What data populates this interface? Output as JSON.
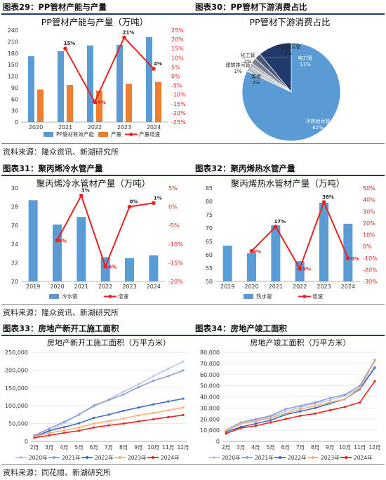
{
  "headers": {
    "h29": "图表29：PP管材产能与产量",
    "h30": "图表30：PP管材下游消费占比",
    "h31": "图表31：聚丙烯冷水管产量",
    "h32": "图表32：聚丙烯热水管产量",
    "h33": "图表33：房地产新开工施工面积",
    "h34": "图表34：房地产竣工面积"
  },
  "sources": {
    "s1": "资料来源：隆众资讯、新湖研究所",
    "s2": "资料来源：隆众资讯、新湖研究所",
    "s3": "资料来源：同花顺、新湖研究所"
  },
  "colors": {
    "blue": "#5b9bd5",
    "orange": "#ed7d31",
    "red": "#e8231f",
    "navy": "#1f3a6b"
  },
  "chart_data": [
    {
      "id": "c29",
      "type": "bar",
      "title": "PP管材产能与产量（万吨）",
      "categories": [
        "2020",
        "2021",
        "2022",
        "2023",
        "2024"
      ],
      "series": [
        {
          "name": "PP管材有效产能",
          "values": [
            172,
            185,
            200,
            202,
            222
          ]
        },
        {
          "name": "产量",
          "values": [
            85,
            97,
            82,
            100,
            105
          ]
        },
        {
          "name": "产量增速",
          "values": [
            null,
            15,
            -14,
            21,
            4
          ],
          "labels": [
            "",
            "15%",
            "-14%",
            "21%",
            "4%"
          ]
        }
      ],
      "ylim": [
        0,
        240
      ],
      "y2lim": [
        -25,
        25
      ],
      "yticks": [
        "0",
        "30",
        "60",
        "90",
        "120",
        "150",
        "180",
        "210",
        "240"
      ],
      "y2ticks": [
        "-25%",
        "-20%",
        "-15%",
        "-10%",
        "-5%",
        "0%",
        "5%",
        "10%",
        "15%",
        "20%",
        "25%"
      ]
    },
    {
      "id": "c30",
      "type": "pie",
      "title": "PP管材下游消费占比",
      "slices": [
        {
          "name": "冷热给水管",
          "value": 82,
          "label": "82%"
        },
        {
          "name": "电力管",
          "value": 11,
          "label": "11%"
        },
        {
          "name": "市政排污管",
          "value": 2,
          "label": "2%"
        },
        {
          "name": "化工管",
          "value": 2,
          "label": "2%"
        },
        {
          "name": "建筑排污管",
          "value": 1,
          "label": "1%"
        },
        {
          "name": "其他",
          "value": 2,
          "label": "2%"
        }
      ]
    },
    {
      "id": "c31",
      "type": "bar",
      "title": "聚丙烯冷水管材产量（万吨）",
      "categories": [
        "2019",
        "2020",
        "2021",
        "2022",
        "2023",
        "2024"
      ],
      "series": [
        {
          "name": "冷水管",
          "values": [
            28.7,
            26.1,
            26.9,
            22.6,
            22.5,
            22.8
          ]
        },
        {
          "name": "增速",
          "values": [
            null,
            -9,
            3,
            -16,
            0,
            1
          ],
          "labels": [
            "",
            "-9%",
            "3%",
            "-16%",
            "0%",
            "1%"
          ]
        }
      ],
      "ylim": [
        20,
        30
      ],
      "y2lim": [
        -20,
        5
      ],
      "yticks": [
        "20",
        "22",
        "24",
        "26",
        "28",
        "30"
      ],
      "y2ticks": [
        "-20%",
        "-15%",
        "-10%",
        "-5%",
        "0%",
        "5%"
      ]
    },
    {
      "id": "c32",
      "type": "bar",
      "title": "聚丙烯热水管材产量（万吨）",
      "categories": [
        "2019",
        "2020",
        "2021",
        "2022",
        "2023",
        "2024"
      ],
      "series": [
        {
          "name": "热水管",
          "values": [
            63.4,
            60.6,
            71.0,
            57.6,
            79.5,
            71.6
          ]
        },
        {
          "name": "增速",
          "values": [
            null,
            -4,
            17,
            -19,
            38,
            -10
          ],
          "labels": [
            "",
            "-4%",
            "17%",
            "-19%",
            "38%",
            "-10%"
          ]
        }
      ],
      "ylim": [
        50,
        85
      ],
      "y2lim": [
        -30,
        50
      ],
      "yticks": [
        "50",
        "55",
        "60",
        "65",
        "70",
        "75",
        "80",
        "85"
      ],
      "y2ticks": [
        "-30%",
        "-20%",
        "-10%",
        "0%",
        "10%",
        "20%",
        "30%",
        "40%",
        "50%"
      ]
    },
    {
      "id": "c33",
      "type": "line",
      "title": "房地产新开工施工面积（万平方米）",
      "categories": [
        "2月",
        "3月",
        "4月",
        "5月",
        "6月",
        "7月",
        "8月",
        "9月",
        "10月",
        "11月",
        "12月"
      ],
      "series": [
        {
          "name": "2020年",
          "values": [
            10000,
            28000,
            52000,
            76000,
            98000,
            118000,
            140000,
            160000,
            183000,
            204000,
            224000
          ]
        },
        {
          "name": "2021年",
          "values": [
            17000,
            36000,
            55000,
            75000,
            101000,
            116000,
            132000,
            152000,
            170000,
            183000,
            199000
          ]
        },
        {
          "name": "2022年",
          "values": [
            13000,
            30000,
            40000,
            51000,
            66000,
            75000,
            86000,
            95000,
            104000,
            112000,
            120000
          ]
        },
        {
          "name": "2023年",
          "values": [
            13000,
            24000,
            31000,
            39000,
            50000,
            57000,
            64000,
            73000,
            80000,
            87000,
            95000
          ]
        },
        {
          "name": "2024年",
          "values": [
            10000,
            17000,
            24000,
            30000,
            39000,
            45000,
            50000,
            56000,
            62000,
            68000,
            74000
          ]
        }
      ],
      "ylim": [
        0,
        250000
      ],
      "yticks": [
        "0",
        "50,000",
        "100,000",
        "150,000",
        "200,000",
        "250,000"
      ]
    },
    {
      "id": "c34",
      "type": "line",
      "title": "房地产竣工面积（万平方米）",
      "categories": [
        "2月",
        "3月",
        "4月",
        "5月",
        "6月",
        "7月",
        "8月",
        "9月",
        "10月",
        "11月",
        "12月"
      ],
      "series": [
        {
          "name": "2020年",
          "values": [
            9500,
            15600,
            19000,
            22000,
            27000,
            30500,
            34000,
            37000,
            41000,
            48000,
            67000
          ]
        },
        {
          "name": "2021年",
          "values": [
            10200,
            17000,
            20000,
            23000,
            29000,
            32000,
            35000,
            39000,
            42000,
            50000,
            73000
          ]
        },
        {
          "name": "2022年",
          "values": [
            8600,
            13000,
            16000,
            19000,
            24000,
            27000,
            30000,
            34000,
            38000,
            47000,
            66000
          ]
        },
        {
          "name": "2023年",
          "values": [
            10000,
            16000,
            18000,
            21000,
            25000,
            29000,
            32000,
            35000,
            38000,
            48000,
            72000
          ]
        },
        {
          "name": "2024年",
          "values": [
            7000,
            12000,
            14000,
            17000,
            20000,
            23000,
            25000,
            28000,
            31000,
            35000,
            54000
          ]
        }
      ],
      "ylim": [
        0,
        80000
      ],
      "yticks": [
        "0",
        "10,000",
        "20,000",
        "30,000",
        "40,000",
        "50,000",
        "60,000",
        "70,000",
        "80,000"
      ]
    }
  ]
}
